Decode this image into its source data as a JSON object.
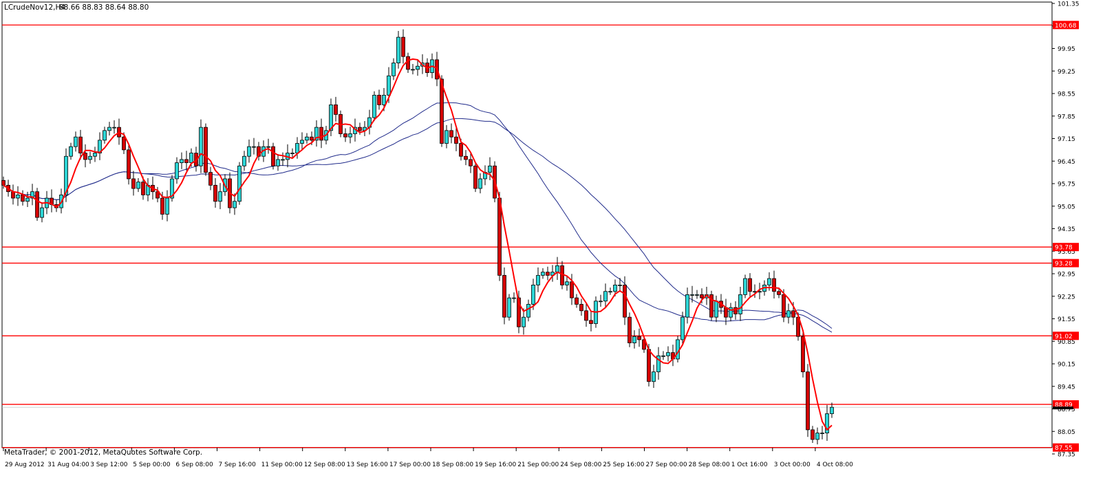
{
  "header": {
    "symbol_label": "LCrudeNov12,H4",
    "ohlc_label": "88.66 88.83 88.64 88.80"
  },
  "footer": {
    "copyright": "MetaTrader, © 2001-2012, MetaQuotes Software Corp."
  },
  "colors": {
    "bull_fill": "#2dd6d6",
    "bear_fill": "#d40000",
    "candle_outline": "#000000",
    "fast_ma": "#ff0000",
    "slow_ma": "#1f2a8a",
    "level_line": "#ff0000",
    "axis_bg": "#ffffff",
    "level_label_bg": "#ff0000",
    "level_label_text": "#ffffff"
  },
  "chart_data": {
    "type": "candlestick",
    "title": "LCrudeNov12,H4",
    "timeframe": "H4",
    "ylim": [
      87.35,
      101.35
    ],
    "y_ticks": [
      101.35,
      100.65,
      99.95,
      99.25,
      98.55,
      97.85,
      97.15,
      96.45,
      95.75,
      95.05,
      94.35,
      93.65,
      92.95,
      92.25,
      91.55,
      90.85,
      90.15,
      89.45,
      88.75,
      88.05,
      87.35
    ],
    "x_tick_labels": [
      "29 Aug 2012",
      "31 Aug 04:00",
      "3 Sep 12:00",
      "5 Sep 00:00",
      "6 Sep 08:00",
      "7 Sep 16:00",
      "11 Sep 00:00",
      "12 Sep 08:00",
      "13 Sep 16:00",
      "17 Sep 00:00",
      "18 Sep 08:00",
      "19 Sep 16:00",
      "21 Sep 00:00",
      "24 Sep 08:00",
      "25 Sep 16:00",
      "27 Sep 00:00",
      "28 Sep 08:00",
      "1 Oct 16:00",
      "3 Oct 00:00",
      "4 Oct 08:00"
    ],
    "horizontal_levels": [
      100.68,
      93.78,
      93.28,
      91.02,
      88.89,
      87.55
    ],
    "level_labels": [
      "100.68",
      "93.78",
      "93.28",
      "91.02",
      "88.89",
      "87.55"
    ],
    "current_price": 88.8,
    "close_series": [
      95.7,
      95.5,
      95.3,
      95.4,
      95.2,
      95.3,
      95.5,
      94.7,
      95.0,
      95.3,
      95.1,
      95.0,
      95.4,
      96.6,
      96.9,
      97.2,
      96.7,
      96.5,
      96.6,
      96.7,
      97.1,
      97.4,
      97.5,
      97.5,
      97.2,
      96.8,
      95.9,
      95.6,
      95.8,
      95.4,
      95.7,
      95.5,
      95.3,
      94.8,
      95.3,
      95.9,
      96.4,
      96.5,
      96.4,
      96.7,
      96.3,
      97.5,
      96.1,
      95.7,
      95.2,
      95.5,
      95.9,
      95.0,
      95.2,
      96.3,
      96.6,
      96.9,
      96.9,
      96.6,
      96.9,
      96.9,
      96.3,
      96.5,
      96.5,
      96.7,
      96.7,
      97.0,
      97.1,
      97.2,
      97.1,
      97.5,
      97.1,
      97.4,
      98.2,
      97.9,
      97.3,
      97.2,
      97.3,
      97.5,
      97.4,
      97.5,
      97.8,
      98.5,
      98.2,
      98.5,
      99.1,
      99.5,
      100.3,
      99.7,
      99.3,
      99.3,
      99.4,
      99.5,
      99.2,
      99.6,
      99.0,
      97.0,
      97.4,
      97.2,
      97.0,
      96.6,
      96.5,
      96.3,
      95.6,
      95.9,
      96.1,
      96.3,
      95.3,
      92.9,
      91.6,
      92.2,
      92.2,
      91.3,
      91.6,
      92.0,
      92.6,
      92.9,
      93.0,
      92.9,
      93.0,
      93.2,
      92.6,
      92.7,
      92.2,
      92.0,
      91.8,
      91.5,
      91.4,
      92.1,
      92.1,
      92.4,
      92.4,
      92.6,
      92.6,
      91.6,
      90.8,
      91.0,
      90.9,
      90.6,
      89.6,
      89.9,
      90.4,
      90.4,
      90.5,
      90.3,
      90.9,
      91.6,
      92.3,
      92.3,
      92.3,
      92.2,
      92.3,
      91.6,
      92.1,
      91.9,
      91.6,
      91.9,
      91.7,
      92.3,
      92.8,
      92.4,
      92.4,
      92.4,
      92.6,
      92.8,
      92.4,
      92.3,
      91.6,
      91.8,
      91.6,
      91.0,
      89.9,
      88.1,
      87.8,
      88.0,
      88.0,
      88.6,
      88.8
    ]
  }
}
